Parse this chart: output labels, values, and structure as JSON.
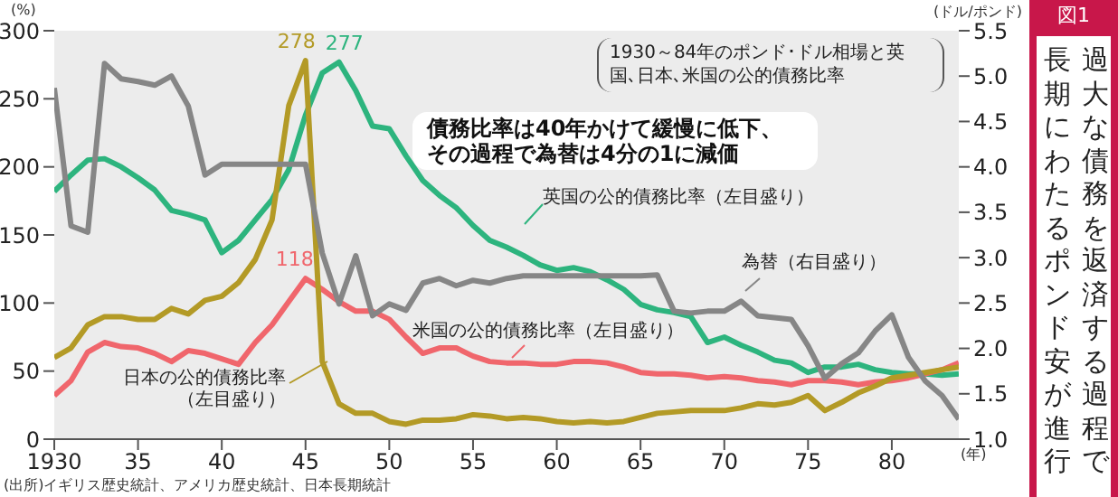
{
  "chart_data": {
    "type": "line",
    "title": "過大な債務を返済する過程で長期にわたるポンド安が進行",
    "subtitle": "図1",
    "xlabel": "(年)",
    "ylabel": "(%)",
    "y2label": "(ドル/ポンド)",
    "x": [
      1930,
      1931,
      1932,
      1933,
      1934,
      1935,
      1936,
      1937,
      1938,
      1939,
      1940,
      1941,
      1942,
      1943,
      1944,
      1945,
      1946,
      1947,
      1948,
      1949,
      1950,
      1951,
      1952,
      1953,
      1954,
      1955,
      1956,
      1957,
      1958,
      1959,
      1960,
      1961,
      1962,
      1963,
      1964,
      1965,
      1966,
      1967,
      1968,
      1969,
      1970,
      1971,
      1972,
      1973,
      1974,
      1975,
      1976,
      1977,
      1978,
      1979,
      1980,
      1981,
      1982,
      1983,
      1984
    ],
    "xlim": [
      1930,
      1984
    ],
    "xticks": [
      1930,
      {
        "value": 1935,
        "label": "35"
      },
      {
        "value": 1940,
        "label": "40"
      },
      {
        "value": 1945,
        "label": "45"
      },
      {
        "value": 1950,
        "label": "50"
      },
      {
        "value": 1955,
        "label": "55"
      },
      {
        "value": 1960,
        "label": "60"
      },
      {
        "value": 1965,
        "label": "65"
      },
      {
        "value": 1970,
        "label": "70"
      },
      {
        "value": 1975,
        "label": "75"
      },
      {
        "value": 1980,
        "label": "80"
      }
    ],
    "ylim": [
      0,
      300
    ],
    "yticks": [
      0,
      50,
      100,
      150,
      200,
      250,
      300
    ],
    "y2lim": [
      1,
      5.5
    ],
    "y2ticks": [
      {
        "value": 1,
        "label": "1.0"
      },
      1.5,
      {
        "value": 2,
        "label": "2.0"
      },
      2.5,
      {
        "value": 3,
        "label": "3.0"
      },
      3.5,
      {
        "value": 4,
        "label": "4.0"
      },
      4.5,
      {
        "value": 5,
        "label": "5.0"
      },
      5.5
    ],
    "marker": "none",
    "line_style": "solid",
    "series": [
      {
        "name": "英国の公的債務比率（左目盛り）",
        "color": "#2db47e",
        "values": [
          182,
          194,
          205,
          206,
          200,
          192,
          183,
          168,
          165,
          161,
          137,
          146,
          161,
          176,
          198,
          238,
          269,
          277,
          256,
          230,
          228,
          208,
          190,
          179,
          170,
          157,
          146,
          141,
          135,
          128,
          124,
          126,
          123,
          117,
          110,
          99,
          95,
          93,
          90,
          71,
          75,
          69,
          64,
          58,
          56,
          49,
          53,
          53,
          55,
          51,
          49,
          48,
          48,
          47,
          48
        ],
        "value_labels": [
          null,
          null,
          null,
          null,
          null,
          null,
          null,
          null,
          null,
          null,
          null,
          null,
          null,
          null,
          null,
          null,
          null,
          "277",
          null,
          null,
          null,
          null,
          null,
          null,
          null,
          null,
          null,
          null,
          null,
          null,
          null,
          null,
          null,
          null,
          null,
          null,
          null,
          null,
          null,
          null,
          null,
          null,
          null,
          null,
          null,
          null,
          null,
          null,
          null,
          null,
          null,
          null,
          null,
          null,
          null
        ]
      },
      {
        "name": "米国の公的債務比率（左目盛り）",
        "color": "#f0666c",
        "values": [
          32,
          43,
          64,
          71,
          68,
          67,
          63,
          57,
          65,
          63,
          59,
          55,
          71,
          84,
          101,
          118,
          110,
          101,
          94,
          94,
          88,
          75,
          63,
          67,
          67,
          61,
          57,
          56,
          56,
          55,
          55,
          57,
          57,
          56,
          53,
          49,
          48,
          48,
          47,
          45,
          46,
          45,
          43,
          42,
          40,
          43,
          43,
          42,
          40,
          42,
          43,
          45,
          48,
          51,
          56
        ],
        "value_labels": [
          null,
          null,
          null,
          null,
          null,
          null,
          null,
          null,
          null,
          null,
          null,
          null,
          null,
          null,
          null,
          "118",
          null,
          null,
          null,
          null,
          null,
          null,
          null,
          null,
          null,
          null,
          null,
          null,
          null,
          null,
          null,
          null,
          null,
          null,
          null,
          null,
          null,
          null,
          null,
          null,
          null,
          null,
          null,
          null,
          null,
          null,
          null,
          null,
          null,
          null,
          null,
          null,
          null,
          null,
          null
        ]
      },
      {
        "name": "日本の公的債務比率（左目盛り）",
        "color": "#b39a26",
        "values": [
          60,
          67,
          84,
          90,
          90,
          88,
          88,
          96,
          92,
          102,
          105,
          115,
          132,
          161,
          245,
          278,
          57,
          26,
          19,
          19,
          13,
          11,
          14,
          14,
          15,
          18,
          17,
          15,
          16,
          15,
          13,
          12,
          13,
          12,
          13,
          16,
          19,
          20,
          21,
          21,
          21,
          23,
          26,
          25,
          27,
          32,
          21,
          27,
          34,
          39,
          45,
          47,
          49,
          51,
          53
        ],
        "value_labels": [
          null,
          null,
          null,
          null,
          null,
          null,
          null,
          null,
          null,
          null,
          null,
          null,
          null,
          null,
          null,
          "278",
          null,
          null,
          null,
          null,
          null,
          null,
          null,
          null,
          null,
          null,
          null,
          null,
          null,
          null,
          null,
          null,
          null,
          null,
          null,
          null,
          null,
          null,
          null,
          null,
          null,
          null,
          null,
          null,
          null,
          null,
          null,
          null,
          null,
          null,
          null,
          null,
          null,
          null,
          null
        ]
      },
      {
        "name": "為替（右目盛り）",
        "color": "#868686",
        "axis": "y2",
        "values": [
          4.87,
          3.35,
          3.28,
          5.14,
          4.97,
          4.94,
          4.9,
          5.0,
          4.67,
          3.91,
          4.03,
          4.03,
          4.03,
          4.03,
          4.03,
          4.03,
          3.05,
          2.49,
          3.02,
          2.36,
          2.49,
          2.42,
          2.72,
          2.77,
          2.69,
          2.75,
          2.72,
          2.77,
          2.8,
          2.8,
          2.8,
          2.8,
          2.8,
          2.8,
          2.8,
          2.8,
          2.81,
          2.41,
          2.39,
          2.41,
          2.41,
          2.52,
          2.36,
          2.34,
          2.32,
          2.03,
          1.67,
          1.83,
          1.95,
          2.19,
          2.37,
          1.9,
          1.64,
          1.48,
          1.22
        ]
      }
    ],
    "annotations": [
      "1930～84年のポンド･ドル相場と英国､日本､米国の公的債務比率",
      "債務比率は40年かけて緩慢に低下、その過程で為替は4分の1に減価",
      "(出所)イギリス歴史統計、アメリカ歴史統計、日本長期統計"
    ]
  }
}
